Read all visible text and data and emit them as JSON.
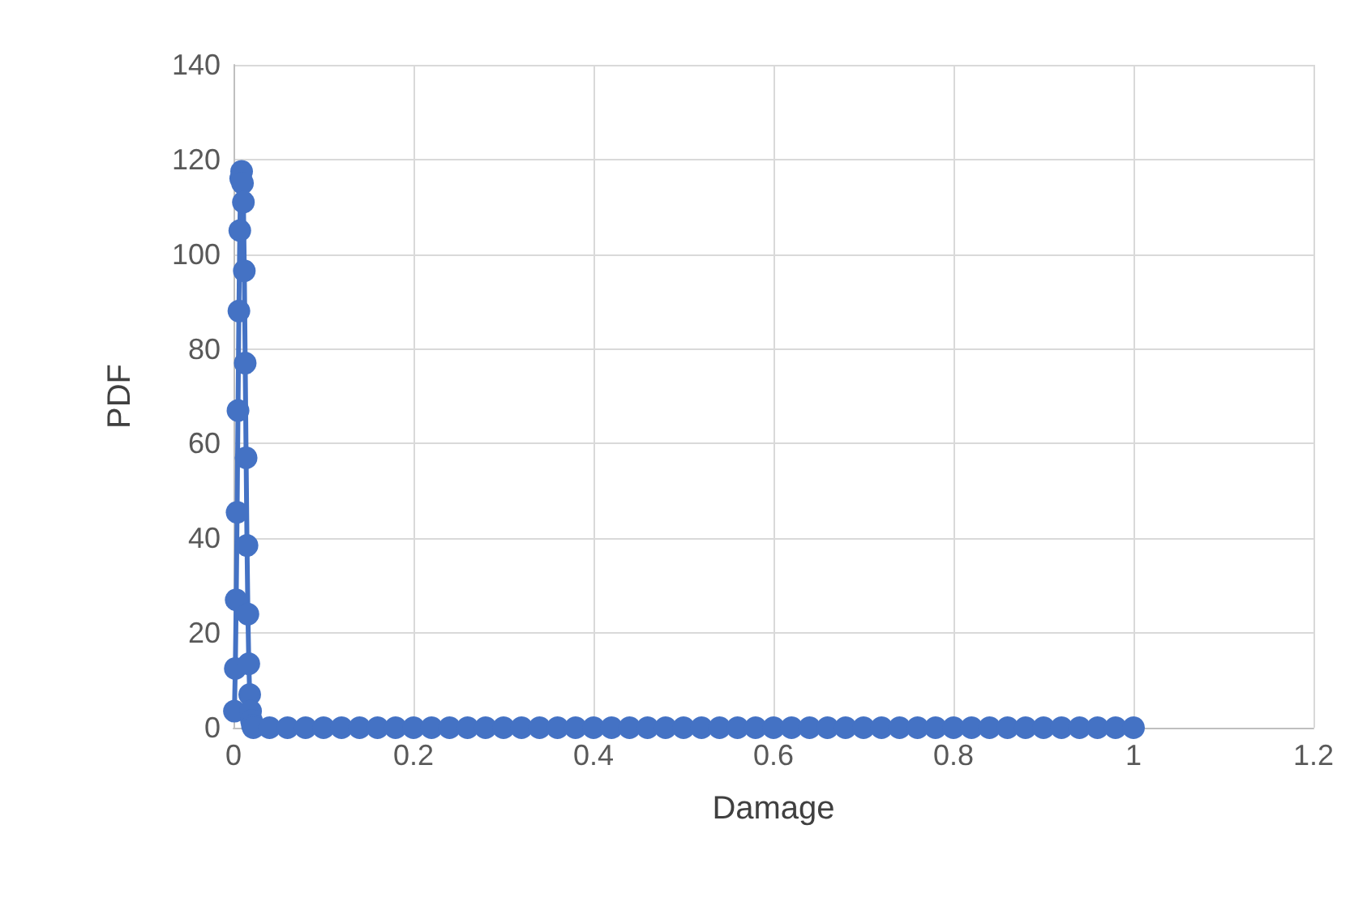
{
  "chart_data": {
    "type": "line",
    "xlabel": "Damage",
    "ylabel": "PDF",
    "x": [
      0.001,
      0.002,
      0.003,
      0.004,
      0.005,
      0.006,
      0.007,
      0.008,
      0.009,
      0.01,
      0.011,
      0.012,
      0.013,
      0.014,
      0.015,
      0.016,
      0.017,
      0.018,
      0.019,
      0.02,
      0.021,
      0.022,
      0.04,
      0.06,
      0.08,
      0.1,
      0.12,
      0.14,
      0.16,
      0.18,
      0.2,
      0.22,
      0.24,
      0.26,
      0.28,
      0.3,
      0.32,
      0.34,
      0.36,
      0.38,
      0.4,
      0.42,
      0.44,
      0.46,
      0.48,
      0.5,
      0.52,
      0.54,
      0.56,
      0.58,
      0.6,
      0.62,
      0.64,
      0.66,
      0.68,
      0.7,
      0.72,
      0.74,
      0.76,
      0.78,
      0.8,
      0.82,
      0.84,
      0.86,
      0.88,
      0.9,
      0.92,
      0.94,
      0.96,
      0.98,
      1.0
    ],
    "series": [
      {
        "color": "#4472c4",
        "values": [
          3.5,
          12.5,
          27,
          45.5,
          67,
          88,
          105,
          116,
          117.5,
          115,
          111,
          96.5,
          77,
          57,
          38.5,
          24,
          13.5,
          7,
          3.5,
          1.5,
          0.5,
          0,
          0,
          0,
          0,
          0,
          0,
          0,
          0,
          0,
          0,
          0,
          0,
          0,
          0,
          0,
          0,
          0,
          0,
          0,
          0,
          0,
          0,
          0,
          0,
          0,
          0,
          0,
          0,
          0,
          0,
          0,
          0,
          0,
          0,
          0,
          0,
          0,
          0,
          0,
          0,
          0,
          0,
          0,
          0,
          0,
          0,
          0,
          0,
          0,
          0
        ]
      }
    ],
    "xlim": [
      0,
      1.2
    ],
    "xticks": [
      0,
      0.2,
      0.4,
      0.6,
      0.8,
      1,
      1.2
    ],
    "ylim": [
      0,
      140
    ],
    "yticks": [
      0,
      20,
      40,
      60,
      80,
      100,
      120,
      140
    ],
    "grid": true,
    "marker": "circle",
    "line_style": "solid"
  }
}
